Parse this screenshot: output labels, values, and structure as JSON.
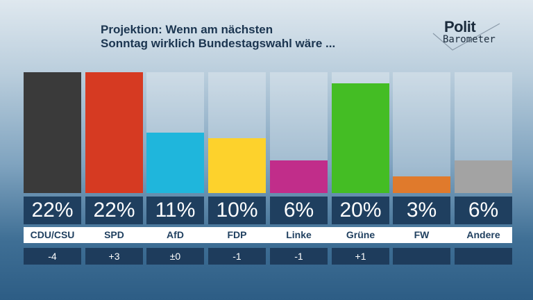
{
  "chart_data": {
    "type": "bar",
    "title": "Projektion: Wenn am nächsten Sonntag wirklich Bundestagswahl wäre ...",
    "title_lines": [
      "Projektion: Wenn am nächsten",
      "Sonntag wirklich Bundestagswahl wäre ..."
    ],
    "categories": [
      "CDU/CSU",
      "SPD",
      "AfD",
      "FDP",
      "Linke",
      "Grüne",
      "FW",
      "Andere"
    ],
    "values": [
      22,
      22,
      11,
      10,
      6,
      20,
      3,
      6
    ],
    "value_labels": [
      "22%",
      "22%",
      "11%",
      "10%",
      "6%",
      "20%",
      "3%",
      "6%"
    ],
    "changes": [
      "-4",
      "+3",
      "±0",
      "-1",
      "-1",
      "+1",
      "",
      ""
    ],
    "colors": [
      "#3a3a3a",
      "#d63a22",
      "#1fb6dc",
      "#fdd22c",
      "#c12d8a",
      "#44bd24",
      "#e07a2c",
      "#a3a3a3"
    ],
    "ylim": [
      0,
      22
    ],
    "grid": false
  },
  "logo": {
    "line1": "Polit",
    "line2": "Barometer"
  }
}
